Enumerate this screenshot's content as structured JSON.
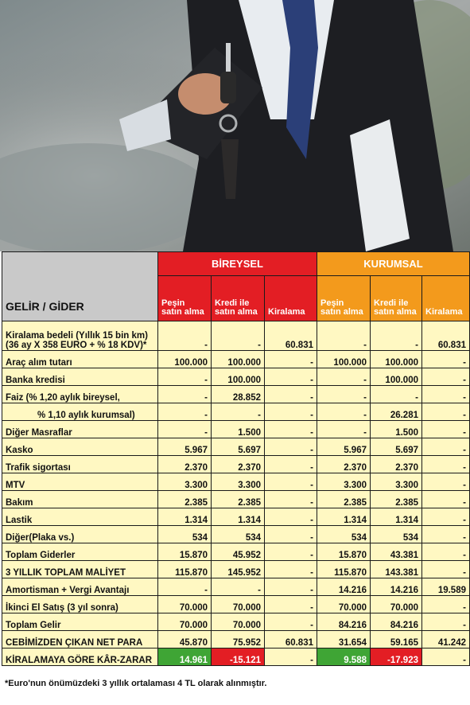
{
  "header": {
    "gelir_gider": "GELİR / GİDER",
    "bireysel": "BİREYSEL",
    "kurumsal": "KURUMSAL",
    "pesin": "Peşin satın alma",
    "kredi": "Kredi ile satın alma",
    "kiralama": "Kiralama"
  },
  "rows": [
    {
      "label": "Kiralama bedeli (Yıllık 15 bin km)",
      "label2": "(36 ay X 358 EURO + % 18 KDV)*",
      "b1": "-",
      "b2": "-",
      "b3": "60.831",
      "k1": "-",
      "k2": "-",
      "k3": "60.831"
    },
    {
      "label": "Araç alım tutarı",
      "b1": "100.000",
      "b2": "100.000",
      "b3": "-",
      "k1": "100.000",
      "k2": "100.000",
      "k3": "-"
    },
    {
      "label": "Banka kredisi",
      "b1": "-",
      "b2": "100.000",
      "b3": "-",
      "k1": "-",
      "k2": "100.000",
      "k3": "-"
    },
    {
      "label": "Faiz (% 1,20 aylık bireysel,",
      "b1": "-",
      "b2": "28.852",
      "b3": "-",
      "k1": "-",
      "k2": "-",
      "k3": "-"
    },
    {
      "label": "% 1,10 aylık kurumsal)",
      "indent": true,
      "b1": "-",
      "b2": "-",
      "b3": "-",
      "k1": "-",
      "k2": "26.281",
      "k3": "-"
    },
    {
      "label": "Diğer Masraflar",
      "b1": "-",
      "b2": "1.500",
      "b3": "-",
      "k1": "-",
      "k2": "1.500",
      "k3": "-"
    },
    {
      "label": "Kasko",
      "b1": "5.967",
      "b2": "5.697",
      "b3": "-",
      "k1": "5.967",
      "k2": "5.697",
      "k3": "-"
    },
    {
      "label": "Trafik sigortası",
      "b1": "2.370",
      "b2": "2.370",
      "b3": "-",
      "k1": "2.370",
      "k2": "2.370",
      "k3": "-"
    },
    {
      "label": "MTV",
      "b1": "3.300",
      "b2": "3.300",
      "b3": "-",
      "k1": "3.300",
      "k2": "3.300",
      "k3": "-"
    },
    {
      "label": "Bakım",
      "b1": "2.385",
      "b2": "2.385",
      "b3": "-",
      "k1": "2.385",
      "k2": "2.385",
      "k3": "-"
    },
    {
      "label": "Lastik",
      "b1": "1.314",
      "b2": "1.314",
      "b3": "-",
      "k1": "1.314",
      "k2": "1.314",
      "k3": "-"
    },
    {
      "label": "Diğer(Plaka vs.)",
      "b1": "534",
      "b2": "534",
      "b3": "-",
      "k1": "534",
      "k2": "534",
      "k3": "-"
    },
    {
      "label": "Toplam Giderler",
      "b1": "15.870",
      "b2": "45.952",
      "b3": "-",
      "k1": "15.870",
      "k2": "43.381",
      "k3": "-"
    },
    {
      "label": "3 YILLIK TOPLAM MALİYET",
      "b1": "115.870",
      "b2": "145.952",
      "b3": "-",
      "k1": "115.870",
      "k2": "143.381",
      "k3": "-"
    },
    {
      "label": "Amortisman + Vergi Avantajı",
      "b1": "-",
      "b2": "-",
      "b3": "-",
      "k1": "14.216",
      "k2": "14.216",
      "k3": "19.589"
    },
    {
      "label": "İkinci El Satış (3 yıl sonra)",
      "b1": "70.000",
      "b2": "70.000",
      "b3": "-",
      "k1": "70.000",
      "k2": "70.000",
      "k3": "-"
    },
    {
      "label": "Toplam Gelir",
      "b1": "70.000",
      "b2": "70.000",
      "b3": "-",
      "k1": "84.216",
      "k2": "84.216",
      "k3": "-"
    },
    {
      "label": "CEBİMİZDEN ÇIKAN NET PARA",
      "b1": "45.870",
      "b2": "75.952",
      "b3": "60.831",
      "k1": "31.654",
      "k2": "59.165",
      "k3": "41.242"
    },
    {
      "label": "KİRALAMAYA GÖRE KÂR-ZARAR",
      "b1": "14.961",
      "b2": "-15.121",
      "b3": "-",
      "k1": "9.588",
      "k2": "-17.923",
      "k3": "-"
    }
  ],
  "footnote": "*Euro'nun önümüzdeki 3 yıllık ortalaması 4 TL olarak alınmıştır.",
  "colors": {
    "red": "#e31e24",
    "orange": "#f39a1c",
    "green": "#3fa535",
    "cream": "#fff8c2",
    "grey": "#c9c9c9"
  }
}
